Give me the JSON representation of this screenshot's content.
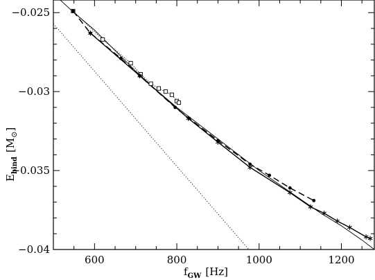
{
  "chart_data": {
    "type": "line",
    "xlabel": {
      "main": "f",
      "sub": "GW",
      "unit": "[Hz]"
    },
    "ylabel": {
      "main": "E",
      "sub": "bind",
      "unit_open": "[M",
      "unit_sub": "⊙",
      "unit_close": "]"
    },
    "xlim": [
      500,
      1280
    ],
    "ylim": [
      -0.04,
      -0.0242
    ],
    "xticks": [
      600,
      800,
      1000,
      1200
    ],
    "xtick_labels": [
      "600",
      "800",
      "1000",
      "1200"
    ],
    "yticks": [
      -0.025,
      -0.03,
      -0.035,
      -0.04
    ],
    "ytick_labels": [
      "−0.025",
      "−0.03",
      "−0.035",
      "−0.04"
    ],
    "grid": false,
    "series": [
      {
        "style": "solid-thin",
        "x": [
          500,
          550,
          600,
          650,
          700,
          750,
          800,
          850,
          900,
          950,
          1000,
          1050,
          1100,
          1150,
          1200,
          1250,
          1280
        ],
        "y": [
          -0.0238,
          -0.025,
          -0.0261,
          -0.0274,
          -0.0287,
          -0.0299,
          -0.031,
          -0.032,
          -0.033,
          -0.034,
          -0.035,
          -0.0359,
          -0.0368,
          -0.0377,
          -0.0385,
          -0.0394,
          -0.04
        ]
      },
      {
        "style": "dotted",
        "x": [
          500,
          975
        ],
        "y": [
          -0.0257,
          -0.04
        ]
      },
      {
        "style": "dotted-squares",
        "marker": "square",
        "x": [
          548,
          620,
          688,
          712,
          737,
          756,
          773,
          788,
          800,
          805
        ],
        "y": [
          -0.0249,
          -0.0267,
          -0.0282,
          -0.0289,
          -0.0295,
          -0.0298,
          -0.03,
          -0.0302,
          -0.0306,
          -0.0307
        ]
      },
      {
        "style": "dashed-dots",
        "marker": "dot",
        "x": [
          548,
          590,
          664,
          710,
          796,
          830,
          900,
          978,
          1025,
          1075,
          1133
        ],
        "y": [
          -0.0249,
          -0.0263,
          -0.0279,
          -0.029,
          -0.031,
          -0.0317,
          -0.0331,
          -0.0346,
          -0.0353,
          -0.0361,
          -0.0369
        ]
      },
      {
        "style": "solid-stars",
        "marker": "star",
        "x": [
          590,
          710,
          828,
          900,
          978,
          1075,
          1125,
          1158,
          1190,
          1220,
          1260,
          1270
        ],
        "y": [
          -0.0263,
          -0.029,
          -0.0317,
          -0.0332,
          -0.0348,
          -0.0364,
          -0.0373,
          -0.0377,
          -0.0382,
          -0.0386,
          -0.0392,
          -0.0393
        ]
      }
    ]
  }
}
